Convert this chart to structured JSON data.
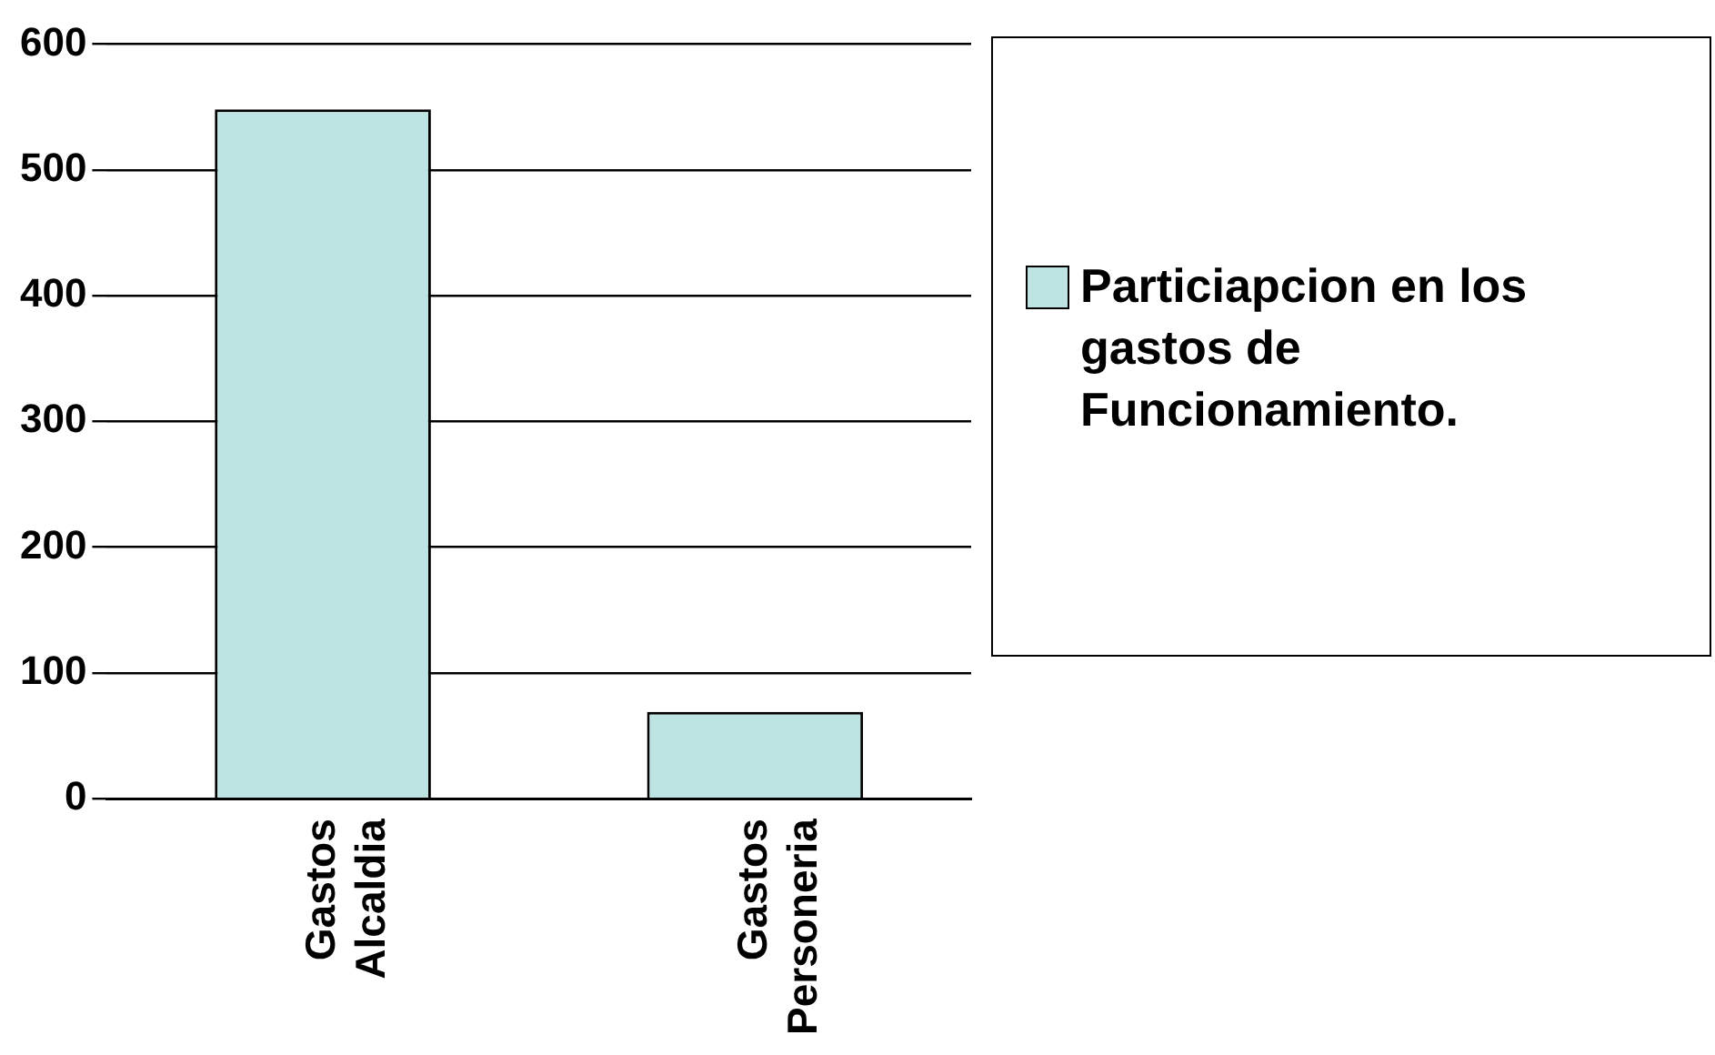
{
  "chart_data": {
    "type": "bar",
    "categories": [
      "Gastos Alcaldia",
      "Gastos Personeria"
    ],
    "series": [
      {
        "name": "Particiapcion en los gastos de Funcionamiento.",
        "color": "#bde3e3",
        "values": [
          548,
          69
        ]
      }
    ],
    "ylim": [
      0,
      600
    ],
    "yticks": [
      0,
      100,
      200,
      300,
      400,
      500,
      600
    ],
    "grid": "y",
    "legend": "right"
  }
}
